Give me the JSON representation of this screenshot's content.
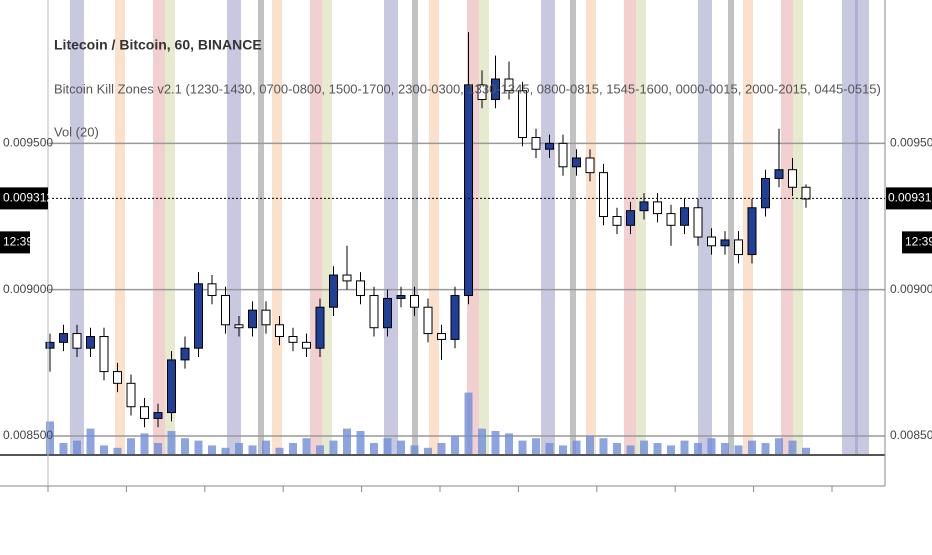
{
  "chart_data": {
    "type": "candlestick",
    "title": "Litecoin / Bitcoin, 60, BINANCE",
    "indicator": "Bitcoin Kill Zones v2.1 (1230-1430, 0700-0800, 1500-1700, 2300-0300, 1330-1345, 0800-0815, 1545-1600, 0000-0015, 2000-2015, 0445-0515)",
    "volume_label": "Vol (20)",
    "ylim": [
      0.008435,
      0.00999
    ],
    "yticks": [
      {
        "value": 0.0095,
        "label": "0.009500"
      },
      {
        "value": 0.009,
        "label": "0.009000"
      },
      {
        "value": 0.0085,
        "label": "0.008500"
      }
    ],
    "last_price": {
      "value": 0.009312,
      "label": "0.009312"
    },
    "countdown": "12:39",
    "up_color": "#1f3f99",
    "down_color": "#ffffff",
    "volume_color": "#6f8fd8",
    "grid": true,
    "open": [
      0.0088,
      0.00882,
      0.00885,
      0.0088,
      0.00884,
      0.00872,
      0.00868,
      0.0086,
      0.00856,
      0.00858,
      0.00876,
      0.0088,
      0.00902,
      0.00898,
      0.00888,
      0.00887,
      0.00893,
      0.00888,
      0.00884,
      0.00882,
      0.0088,
      0.00894,
      0.00905,
      0.00903,
      0.00898,
      0.00887,
      0.00897,
      0.00898,
      0.00894,
      0.00885,
      0.00883,
      0.00898,
      0.0097,
      0.00965,
      0.00972,
      0.00968,
      0.00952,
      0.00948,
      0.0095,
      0.00942,
      0.00945,
      0.0094,
      0.00925,
      0.00922,
      0.00927,
      0.0093,
      0.00926,
      0.00922,
      0.00928,
      0.00918,
      0.00915,
      0.00917,
      0.00912,
      0.00928,
      0.00938,
      0.00941,
      0.00935
    ],
    "high": [
      0.00885,
      0.00888,
      0.00888,
      0.00887,
      0.00887,
      0.00875,
      0.00871,
      0.00863,
      0.00861,
      0.00879,
      0.00884,
      0.00906,
      0.00905,
      0.00901,
      0.00891,
      0.00896,
      0.00896,
      0.00891,
      0.00887,
      0.00885,
      0.00897,
      0.00908,
      0.00915,
      0.00906,
      0.00901,
      0.009,
      0.00901,
      0.00901,
      0.00897,
      0.00888,
      0.00901,
      0.00988,
      0.00975,
      0.0098,
      0.00978,
      0.00971,
      0.00955,
      0.00953,
      0.00953,
      0.00948,
      0.00948,
      0.00943,
      0.00928,
      0.0093,
      0.00933,
      0.00933,
      0.00929,
      0.00931,
      0.00931,
      0.00921,
      0.0092,
      0.0092,
      0.00931,
      0.00941,
      0.00955,
      0.00945,
      0.00936
    ],
    "low": [
      0.00872,
      0.00879,
      0.00877,
      0.00877,
      0.00869,
      0.00865,
      0.00857,
      0.00853,
      0.00853,
      0.00855,
      0.00873,
      0.00877,
      0.00895,
      0.00885,
      0.00884,
      0.00884,
      0.00885,
      0.00881,
      0.00879,
      0.00877,
      0.00877,
      0.00891,
      0.009,
      0.00895,
      0.00884,
      0.00884,
      0.00894,
      0.00891,
      0.00882,
      0.00876,
      0.0088,
      0.00895,
      0.00962,
      0.00962,
      0.00965,
      0.00949,
      0.00945,
      0.00945,
      0.00939,
      0.00939,
      0.00937,
      0.00922,
      0.00919,
      0.00919,
      0.00924,
      0.00923,
      0.00915,
      0.00919,
      0.00915,
      0.00912,
      0.00912,
      0.00909,
      0.00909,
      0.00925,
      0.00935,
      0.00932,
      0.00928
    ],
    "close": [
      0.00882,
      0.00885,
      0.0088,
      0.00884,
      0.00872,
      0.00868,
      0.0086,
      0.00856,
      0.00858,
      0.00876,
      0.0088,
      0.00902,
      0.00898,
      0.00888,
      0.00887,
      0.00893,
      0.00888,
      0.00884,
      0.00882,
      0.0088,
      0.00894,
      0.00905,
      0.00903,
      0.00898,
      0.00887,
      0.00897,
      0.00898,
      0.00894,
      0.00885,
      0.00883,
      0.00898,
      0.0097,
      0.00965,
      0.00972,
      0.00968,
      0.00952,
      0.00948,
      0.0095,
      0.00942,
      0.00945,
      0.0094,
      0.00925,
      0.00922,
      0.00927,
      0.0093,
      0.00926,
      0.00922,
      0.00928,
      0.00918,
      0.00915,
      0.00917,
      0.00912,
      0.00928,
      0.00938,
      0.00941,
      0.00935,
      0.00931
    ],
    "vlim": [
      0,
      100
    ],
    "volume": [
      28,
      10,
      12,
      22,
      8,
      6,
      14,
      18,
      10,
      20,
      14,
      12,
      8,
      6,
      10,
      8,
      12,
      6,
      10,
      14,
      8,
      12,
      22,
      20,
      10,
      14,
      12,
      8,
      6,
      10,
      16,
      52,
      22,
      20,
      18,
      12,
      14,
      10,
      8,
      12,
      16,
      14,
      10,
      8,
      12,
      10,
      8,
      12,
      10,
      14,
      10,
      8,
      12,
      10,
      14,
      12,
      6
    ]
  }
}
